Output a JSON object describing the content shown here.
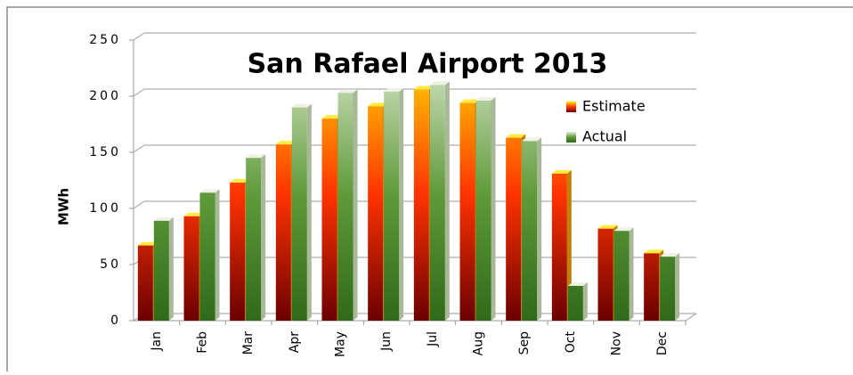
{
  "chart_data": {
    "type": "bar",
    "title": "San Rafael Airport 2013",
    "y_label": "MWh",
    "categories": [
      "Jan",
      "Feb",
      "Mar",
      "Apr",
      "May",
      "Jun",
      "Jul",
      "Aug",
      "Sep",
      "Oct",
      "Nov",
      "Dec"
    ],
    "series": [
      {
        "name": "Estimate",
        "color": "#ff3300",
        "values": [
          67,
          93,
          123,
          157,
          180,
          191,
          206,
          194,
          163,
          131,
          82,
          60
        ]
      },
      {
        "name": "Actual",
        "color": "#5f9a3a",
        "values": [
          89,
          114,
          145,
          190,
          203,
          204,
          210,
          196,
          160,
          31,
          80,
          57
        ]
      }
    ],
    "ylim": [
      0,
      250
    ],
    "yticks": [
      0,
      50,
      100,
      150,
      200,
      250
    ],
    "grid": true,
    "legend": "upper right"
  }
}
